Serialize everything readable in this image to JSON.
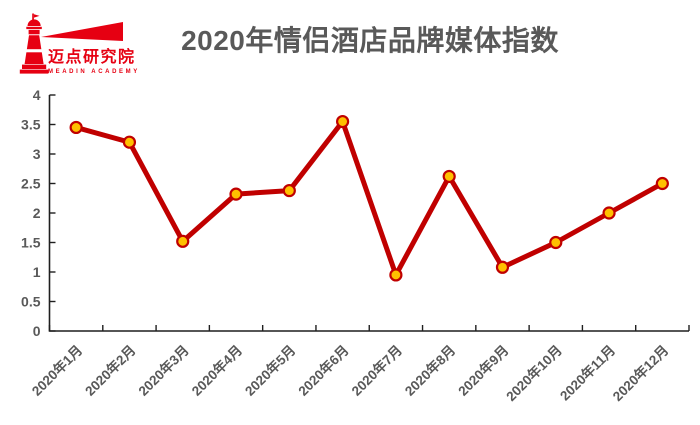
{
  "logo": {
    "name": "迈点研究院",
    "subtext": "MEADIN ACADEMY",
    "icon": "lighthouse-beam-icon",
    "brand_color": "#e60012"
  },
  "colors": {
    "line": "#c00000",
    "marker_fill": "#ffc000",
    "marker_stroke": "#c00000",
    "axis": "#1f1f1f",
    "label": "#595959",
    "title": "#595959",
    "background": "#ffffff"
  },
  "chart_data": {
    "type": "line",
    "title": "2020年情侣酒店品牌媒体指数",
    "xlabel": "",
    "ylabel": "",
    "categories": [
      "2020年1月",
      "2020年2月",
      "2020年3月",
      "2020年4月",
      "2020年5月",
      "2020年6月",
      "2020年7月",
      "2020年8月",
      "2020年9月",
      "2020年10月",
      "2020年11月",
      "2020年12月"
    ],
    "values": [
      3.45,
      3.2,
      1.52,
      2.32,
      2.38,
      3.55,
      0.95,
      2.62,
      1.08,
      1.5,
      2.0,
      2.5
    ],
    "ylim": [
      0,
      4
    ],
    "ytick_step": 0.5,
    "yticks": [
      "4",
      "3.5",
      "3",
      "2.5",
      "2",
      "1.5",
      "1",
      "0.5",
      "0"
    ],
    "grid": false,
    "legend_position": "none",
    "x_label_rotation_deg": 45
  }
}
